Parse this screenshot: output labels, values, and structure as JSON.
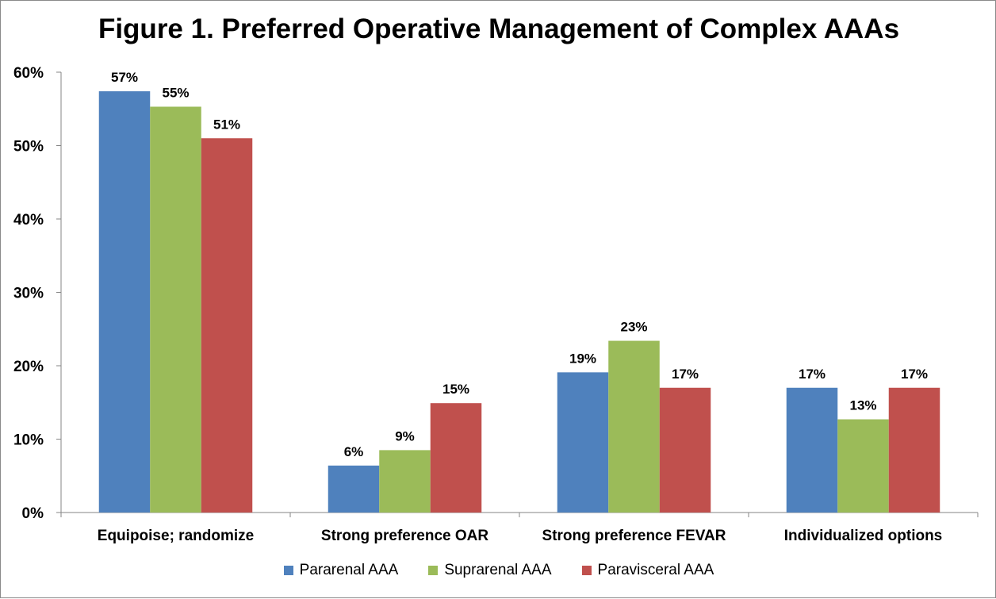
{
  "chart_data": {
    "type": "bar",
    "title": "Figure 1. Preferred Operative Management of Complex AAAs",
    "xlabel": "",
    "ylabel": "",
    "categories": [
      "Equipoise; randomize",
      "Strong preference OAR",
      "Strong preference FEVAR",
      "Individualized options"
    ],
    "series": [
      {
        "name": "Pararenal AAA",
        "color": "#4F81BD",
        "values": [
          57.4,
          6.4,
          19.1,
          17.0
        ],
        "labels": [
          "57%",
          "6%",
          "19%",
          "17%"
        ]
      },
      {
        "name": "Suprarenal AAA",
        "color": "#9BBB59",
        "values": [
          55.3,
          8.5,
          23.4,
          12.7
        ],
        "labels": [
          "55%",
          "9%",
          "23%",
          "13%"
        ]
      },
      {
        "name": "Paravisceral AAA",
        "color": "#C0504D",
        "values": [
          51.0,
          14.9,
          17.0,
          17.0
        ],
        "labels": [
          "51%",
          "15%",
          "17%",
          "17%"
        ]
      }
    ],
    "ylim": [
      0,
      60
    ],
    "yticks": [
      0,
      10,
      20,
      30,
      40,
      50,
      60
    ],
    "ytick_labels": [
      "0%",
      "10%",
      "20%",
      "30%",
      "40%",
      "50%",
      "60%"
    ],
    "grid": false,
    "legend_position": "bottom"
  }
}
